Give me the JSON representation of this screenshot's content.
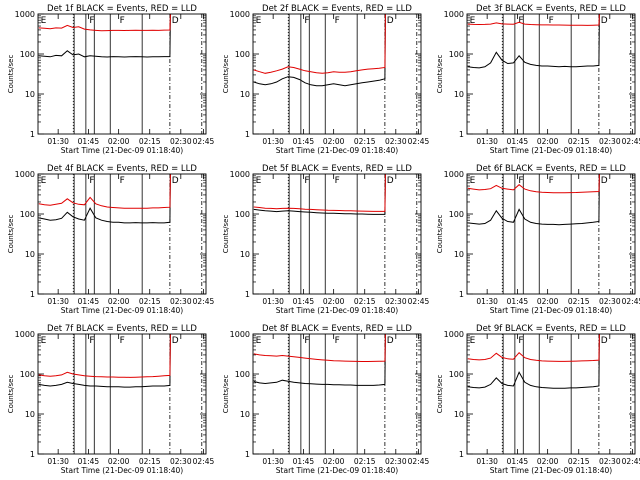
{
  "colors": {
    "events": "#000000",
    "lld": "#e00000",
    "axes": "#000000",
    "background": "#ffffff"
  },
  "chart_data": [
    {
      "type": "line",
      "title": "Det 1f BLACK = Events, RED = LLD",
      "xlabel": "Start Time (21-Dec-09 01:18:40)",
      "ylabel": "Counts/sec",
      "x_ticks": [
        "01:30",
        "01:45",
        "02:00",
        "02:15",
        "02:30",
        "02:45"
      ],
      "y_ticks": [
        "1",
        "10",
        "100",
        "1000"
      ],
      "ylim": [
        1,
        1000
      ],
      "y_scale": "log",
      "markers": [
        "E",
        "F",
        "F",
        "D"
      ],
      "series": [
        {
          "name": "Events",
          "color": "#000000",
          "values": [
            90,
            88,
            85,
            92,
            90,
            120,
            95,
            100,
            85,
            90,
            88,
            85,
            84,
            86,
            85,
            84,
            85,
            86,
            85,
            84,
            85,
            85,
            86,
            86,
            1000
          ]
        },
        {
          "name": "LLD",
          "color": "#e00000",
          "values": [
            450,
            440,
            430,
            450,
            445,
            520,
            460,
            480,
            420,
            400,
            390,
            380,
            385,
            390,
            388,
            386,
            390,
            392,
            390,
            388,
            392,
            390,
            395,
            398,
            1000
          ]
        }
      ]
    },
    {
      "type": "line",
      "title": "Det 2f BLACK = Events, RED = LLD",
      "xlabel": "Start Time (21-Dec-09 01:18:40)",
      "ylabel": "Counts/sec",
      "x_ticks": [
        "01:30",
        "01:45",
        "02:00",
        "02:15",
        "02:30",
        "02:45"
      ],
      "y_ticks": [
        "1",
        "10",
        "100",
        "1000"
      ],
      "ylim": [
        1,
        1000
      ],
      "y_scale": "log",
      "markers": [
        "E",
        "F",
        "F",
        "D"
      ],
      "series": [
        {
          "name": "Events",
          "color": "#000000",
          "values": [
            20,
            18,
            17,
            18,
            20,
            24,
            27,
            26,
            23,
            19,
            17,
            16,
            16,
            17,
            18,
            17,
            16,
            17,
            18,
            19,
            20,
            21,
            22,
            24,
            1000
          ]
        },
        {
          "name": "LLD",
          "color": "#e00000",
          "values": [
            40,
            36,
            33,
            35,
            38,
            42,
            48,
            46,
            42,
            38,
            36,
            34,
            33,
            34,
            36,
            35,
            35,
            36,
            38,
            40,
            42,
            43,
            44,
            46,
            1000
          ]
        }
      ]
    },
    {
      "type": "line",
      "title": "Det 3f BLACK = Events, RED = LLD",
      "xlabel": "Start Time (21-Dec-09 01:18:40)",
      "ylabel": "Counts/sec",
      "x_ticks": [
        "01:30",
        "01:45",
        "02:00",
        "02:15",
        "02:30",
        "02:45"
      ],
      "y_ticks": [
        "1",
        "10",
        "100",
        "1000"
      ],
      "ylim": [
        1,
        1000
      ],
      "y_scale": "log",
      "markers": [
        "E",
        "F",
        "F",
        "D"
      ],
      "series": [
        {
          "name": "Events",
          "color": "#000000",
          "values": [
            48,
            46,
            45,
            48,
            60,
            110,
            70,
            58,
            60,
            90,
            62,
            55,
            52,
            50,
            50,
            49,
            48,
            49,
            48,
            48,
            49,
            50,
            50,
            52,
            1000
          ]
        },
        {
          "name": "LLD",
          "color": "#e00000",
          "values": [
            560,
            550,
            545,
            550,
            560,
            600,
            565,
            560,
            555,
            620,
            560,
            545,
            540,
            535,
            535,
            532,
            530,
            528,
            525,
            525,
            522,
            520,
            525,
            530,
            1000
          ]
        }
      ]
    },
    {
      "type": "line",
      "title": "Det 4f BLACK = Events, RED = LLD",
      "xlabel": "Start Time (21-Dec-09 01:18:40)",
      "ylabel": "Counts/sec",
      "x_ticks": [
        "01:30",
        "01:45",
        "02:00",
        "02:15",
        "02:30",
        "02:45"
      ],
      "y_ticks": [
        "1",
        "10",
        "100",
        "1000"
      ],
      "ylim": [
        1,
        1000
      ],
      "y_scale": "log",
      "markers": [
        "E",
        "F",
        "F",
        "D"
      ],
      "series": [
        {
          "name": "Events",
          "color": "#000000",
          "values": [
            80,
            75,
            70,
            72,
            78,
            110,
            85,
            75,
            70,
            140,
            80,
            70,
            65,
            62,
            62,
            60,
            60,
            61,
            60,
            60,
            61,
            60,
            60,
            62,
            1000
          ]
        },
        {
          "name": "LLD",
          "color": "#e00000",
          "values": [
            180,
            170,
            165,
            175,
            185,
            240,
            190,
            175,
            170,
            260,
            180,
            160,
            150,
            145,
            142,
            140,
            140,
            140,
            140,
            140,
            142,
            142,
            145,
            148,
            1000
          ]
        }
      ]
    },
    {
      "type": "line",
      "title": "Det 5f BLACK = Events, RED = LLD",
      "xlabel": "Start Time (21-Dec-09 01:18:40)",
      "ylabel": "Counts/sec",
      "x_ticks": [
        "01:30",
        "01:45",
        "02:00",
        "02:15",
        "02:30",
        "02:45"
      ],
      "y_ticks": [
        "1",
        "10",
        "100",
        "1000"
      ],
      "ylim": [
        1,
        1000
      ],
      "y_scale": "log",
      "markers": [
        "E",
        "F",
        "F",
        "D"
      ],
      "series": [
        {
          "name": "Events",
          "color": "#000000",
          "values": [
            130,
            125,
            120,
            118,
            115,
            118,
            120,
            118,
            115,
            112,
            110,
            108,
            106,
            105,
            104,
            103,
            102,
            101,
            100,
            100,
            99,
            98,
            98,
            98,
            1000
          ]
        },
        {
          "name": "LLD",
          "color": "#e00000",
          "values": [
            150,
            145,
            140,
            138,
            135,
            138,
            140,
            138,
            135,
            132,
            130,
            128,
            126,
            124,
            123,
            122,
            121,
            120,
            119,
            118,
            117,
            116,
            116,
            116,
            1000
          ]
        }
      ]
    },
    {
      "type": "line",
      "title": "Det 6f BLACK = Events, RED = LLD",
      "xlabel": "Start Time (21-Dec-09 01:18:40)",
      "ylabel": "Counts/sec",
      "x_ticks": [
        "01:30",
        "01:45",
        "02:00",
        "02:15",
        "02:30",
        "02:45"
      ],
      "y_ticks": [
        "1",
        "10",
        "100",
        "1000"
      ],
      "ylim": [
        1,
        1000
      ],
      "y_scale": "log",
      "markers": [
        "E",
        "F",
        "F",
        "D"
      ],
      "series": [
        {
          "name": "Events",
          "color": "#000000",
          "values": [
            60,
            58,
            56,
            58,
            70,
            120,
            78,
            65,
            62,
            130,
            75,
            62,
            58,
            56,
            55,
            55,
            54,
            55,
            56,
            57,
            58,
            60,
            62,
            65,
            1000
          ]
        },
        {
          "name": "LLD",
          "color": "#e00000",
          "values": [
            440,
            420,
            400,
            410,
            430,
            520,
            440,
            420,
            400,
            540,
            420,
            380,
            360,
            350,
            345,
            340,
            338,
            340,
            342,
            345,
            350,
            355,
            360,
            365,
            1000
          ]
        }
      ]
    },
    {
      "type": "line",
      "title": "Det 7f BLACK = Events, RED = LLD",
      "xlabel": "Start Time (21-Dec-09 01:18:40)",
      "ylabel": "Counts/sec",
      "x_ticks": [
        "01:30",
        "01:45",
        "02:00",
        "02:15",
        "02:30",
        "02:45"
      ],
      "y_ticks": [
        "1",
        "10",
        "100",
        "1000"
      ],
      "ylim": [
        1,
        1000
      ],
      "y_scale": "log",
      "markers": [
        "E",
        "F",
        "F",
        "D"
      ],
      "series": [
        {
          "name": "Events",
          "color": "#000000",
          "values": [
            55,
            52,
            50,
            52,
            55,
            62,
            58,
            55,
            52,
            50,
            50,
            49,
            48,
            48,
            48,
            47,
            47,
            48,
            48,
            49,
            50,
            50,
            50,
            52,
            1000
          ]
        },
        {
          "name": "LLD",
          "color": "#e00000",
          "values": [
            95,
            90,
            88,
            90,
            95,
            110,
            100,
            95,
            90,
            88,
            86,
            85,
            84,
            84,
            83,
            83,
            82,
            83,
            84,
            85,
            86,
            88,
            90,
            92,
            1000
          ]
        }
      ]
    },
    {
      "type": "line",
      "title": "Det 8f BLACK = Events, RED = LLD",
      "xlabel": "Start Time (21-Dec-09 01:18:40)",
      "ylabel": "Counts/sec",
      "x_ticks": [
        "01:30",
        "01:45",
        "02:00",
        "02:15",
        "02:30",
        "02:45"
      ],
      "y_ticks": [
        "1",
        "10",
        "100",
        "1000"
      ],
      "ylim": [
        1,
        1000
      ],
      "y_scale": "log",
      "markers": [
        "E",
        "F",
        "F",
        "D"
      ],
      "series": [
        {
          "name": "Events",
          "color": "#000000",
          "values": [
            65,
            60,
            58,
            60,
            62,
            70,
            66,
            62,
            60,
            58,
            57,
            56,
            55,
            55,
            54,
            54,
            53,
            53,
            52,
            52,
            52,
            52,
            53,
            55,
            1000
          ]
        },
        {
          "name": "LLD",
          "color": "#e00000",
          "values": [
            320,
            300,
            290,
            285,
            280,
            290,
            280,
            270,
            260,
            250,
            240,
            232,
            225,
            220,
            215,
            212,
            210,
            208,
            206,
            205,
            205,
            206,
            208,
            210,
            1000
          ]
        }
      ]
    },
    {
      "type": "line",
      "title": "Det 9f BLACK = Events, RED = LLD",
      "xlabel": "Start Time (21-Dec-09 01:18:40)",
      "ylabel": "Counts/sec",
      "x_ticks": [
        "01:30",
        "01:45",
        "02:00",
        "02:15",
        "02:30",
        "02:45"
      ],
      "y_ticks": [
        "1",
        "10",
        "100",
        "1000"
      ],
      "ylim": [
        1,
        1000
      ],
      "y_scale": "log",
      "markers": [
        "E",
        "F",
        "F",
        "D"
      ],
      "series": [
        {
          "name": "Events",
          "color": "#000000",
          "values": [
            48,
            46,
            45,
            47,
            55,
            80,
            58,
            52,
            50,
            110,
            62,
            52,
            48,
            46,
            45,
            44,
            44,
            44,
            45,
            45,
            46,
            47,
            48,
            50,
            1000
          ]
        },
        {
          "name": "LLD",
          "color": "#e00000",
          "values": [
            240,
            230,
            225,
            230,
            250,
            330,
            260,
            240,
            235,
            340,
            255,
            230,
            220,
            212,
            210,
            208,
            206,
            206,
            208,
            210,
            212,
            215,
            218,
            222,
            1000
          ]
        }
      ]
    }
  ]
}
